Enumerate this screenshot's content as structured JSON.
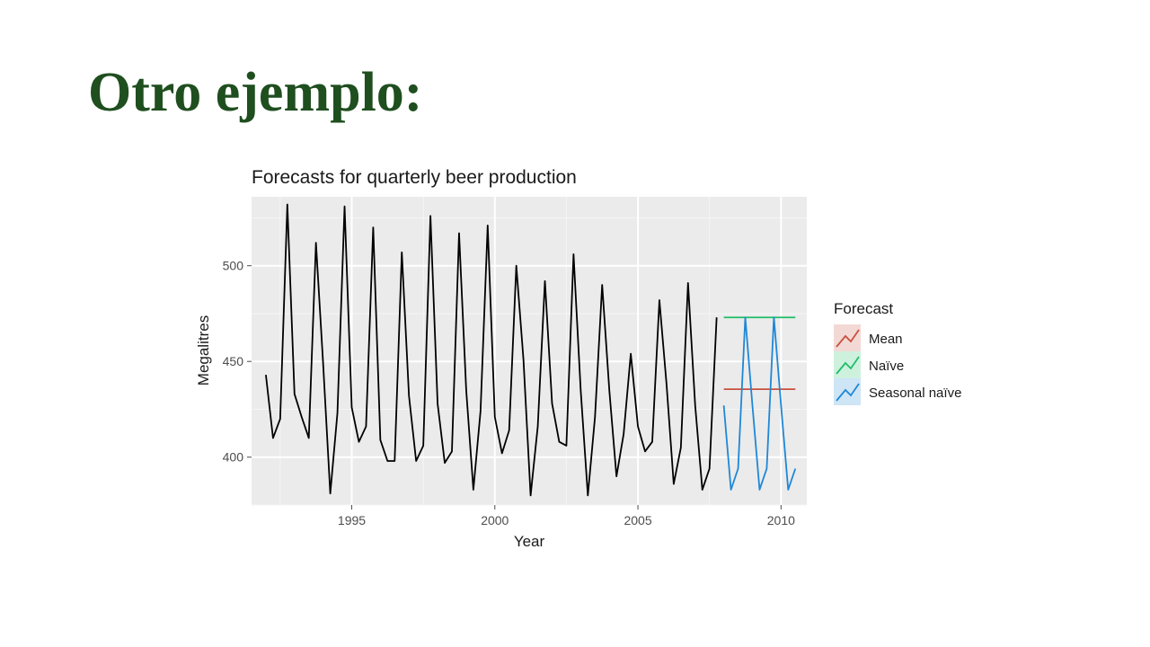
{
  "slide": {
    "title": "Otro ejemplo:"
  },
  "chart_data": {
    "type": "line",
    "title": "Forecasts for quarterly beer production",
    "xlabel": "Year",
    "ylabel": "Megalitres",
    "xlim": [
      1991.5,
      2010.9
    ],
    "ylim": [
      375,
      536
    ],
    "x_ticks": [
      1995,
      2000,
      2005,
      2010
    ],
    "y_ticks": [
      400,
      450,
      500
    ],
    "grid": true,
    "legend": {
      "title": "Forecast",
      "position": "right"
    },
    "historical": {
      "color": "#000000",
      "start": 1992.0,
      "step": 0.25,
      "values": [
        443,
        410,
        420,
        532,
        433,
        421,
        410,
        512,
        449,
        381,
        423,
        531,
        426,
        408,
        416,
        520,
        409,
        398,
        398,
        507,
        432,
        398,
        406,
        526,
        428,
        397,
        403,
        517,
        435,
        383,
        424,
        521,
        421,
        402,
        414,
        500,
        451,
        380,
        416,
        492,
        428,
        408,
        406,
        506,
        435,
        380,
        421,
        490,
        435,
        390,
        412,
        454,
        416,
        403,
        408,
        482,
        438,
        386,
        405,
        491,
        427,
        383,
        394,
        473
      ]
    },
    "series": [
      {
        "name": "Mean",
        "color": "#c9503e",
        "x": [
          2008.0,
          2010.5
        ],
        "values": [
          435.5,
          435.5
        ]
      },
      {
        "name": "Naïve",
        "color": "#1fbe6a",
        "x": [
          2008.0,
          2010.5
        ],
        "values": [
          473,
          473
        ]
      },
      {
        "name": "Seasonal naïve",
        "color": "#1f87d6",
        "start": 2008.0,
        "step": 0.25,
        "values": [
          427,
          383,
          394,
          473,
          427,
          383,
          394,
          473,
          427,
          383,
          394
        ]
      }
    ]
  }
}
